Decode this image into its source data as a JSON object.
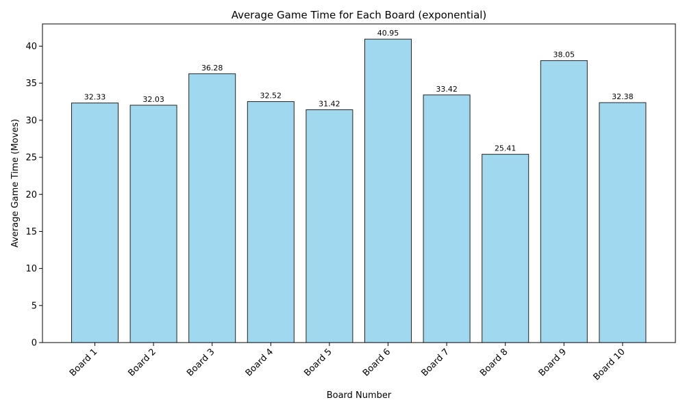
{
  "chart_data": {
    "type": "bar",
    "title": "Average Game Time for Each Board (exponential)",
    "xlabel": "Board Number",
    "ylabel": "Average Game Time (Moves)",
    "categories": [
      "Board 1",
      "Board 2",
      "Board 3",
      "Board 4",
      "Board 5",
      "Board 6",
      "Board 7",
      "Board 8",
      "Board 9",
      "Board 10"
    ],
    "values": [
      32.33,
      32.03,
      36.28,
      32.52,
      31.42,
      40.95,
      33.42,
      25.41,
      38.05,
      32.38
    ],
    "value_labels": [
      "32.33",
      "32.03",
      "36.28",
      "32.52",
      "31.42",
      "40.95",
      "33.42",
      "25.41",
      "38.05",
      "32.38"
    ],
    "ylim": [
      0,
      43
    ],
    "yticks": [
      0,
      5,
      10,
      15,
      20,
      25,
      30,
      35,
      40
    ],
    "grid": false,
    "legend": "none",
    "colors": {
      "bar_fill": "#87ceeb",
      "bar_opacity": 0.8,
      "bar_edge": "#222222",
      "axis": "#000000"
    }
  }
}
